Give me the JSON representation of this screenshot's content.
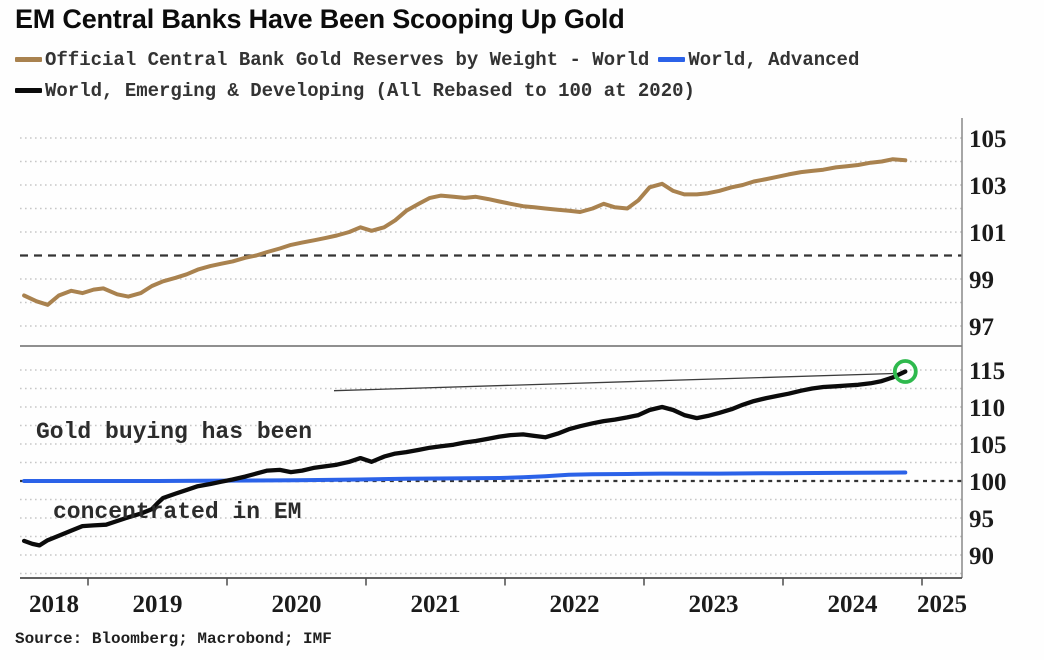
{
  "title": "EM Central Banks Have Been Scooping Up Gold",
  "source": "Source: Bloomberg; Macrobond; IMF",
  "annotation": {
    "line1": "Gold buying has been",
    "line2": "concentrated in EM"
  },
  "colors": {
    "world_total": "#a9824f",
    "world_advanced": "#2b62e8",
    "world_emerging": "#0b0b0b",
    "highlight_circle": "#2eb94d",
    "reference_dash": "#343434",
    "gridline": "#c7c7c7",
    "axis": "#8f8f8f",
    "tick_text": "#1b1b1b"
  },
  "legend": {
    "items": [
      {
        "label": "Official Central Bank Gold Reserves by Weight - World",
        "color": "#a9824f"
      },
      {
        "label": "World, Advanced",
        "color": "#2b62e8"
      },
      {
        "label": "World, Emerging & Developing (All Rebased to 100 at 2020)",
        "color": "#0b0b0b"
      }
    ]
  },
  "x_axis": {
    "range": [
      2018.51,
      2025.29
    ],
    "tick_years": [
      2019,
      2020,
      2021,
      2022,
      2023,
      2024,
      2025
    ],
    "labels": [
      "2018",
      "2019",
      "2020",
      "2021",
      "2022",
      "2023",
      "2024",
      "2025"
    ]
  },
  "chart_data": [
    {
      "type": "line",
      "panel": "top",
      "title": "Official Central Bank Gold Reserves by Weight - World (Rebased to 100 at 2020)",
      "ylim": [
        96.2,
        105.8
      ],
      "ylabel_ticks": [
        105,
        103,
        101,
        99,
        97
      ],
      "gridlines": [
        97,
        98,
        99,
        101,
        102,
        103,
        104,
        105
      ],
      "reference_line": 100,
      "grid": true,
      "legend_position": "top",
      "series": [
        {
          "name": "Official Central Bank Gold Reserves by Weight - World",
          "color": "#a9824f",
          "width": 4,
          "points": [
            [
              2018.54,
              98.3
            ],
            [
              2018.63,
              98.05
            ],
            [
              2018.71,
              97.9
            ],
            [
              2018.79,
              98.3
            ],
            [
              2018.88,
              98.5
            ],
            [
              2018.96,
              98.4
            ],
            [
              2019.04,
              98.55
            ],
            [
              2019.11,
              98.6
            ],
            [
              2019.21,
              98.35
            ],
            [
              2019.29,
              98.25
            ],
            [
              2019.38,
              98.4
            ],
            [
              2019.46,
              98.7
            ],
            [
              2019.54,
              98.9
            ],
            [
              2019.63,
              99.05
            ],
            [
              2019.71,
              99.2
            ],
            [
              2019.79,
              99.4
            ],
            [
              2019.88,
              99.55
            ],
            [
              2019.96,
              99.65
            ],
            [
              2020.04,
              99.75
            ],
            [
              2020.13,
              99.9
            ],
            [
              2020.21,
              100.0
            ],
            [
              2020.29,
              100.15
            ],
            [
              2020.38,
              100.3
            ],
            [
              2020.46,
              100.45
            ],
            [
              2020.54,
              100.55
            ],
            [
              2020.63,
              100.65
            ],
            [
              2020.71,
              100.75
            ],
            [
              2020.79,
              100.85
            ],
            [
              2020.88,
              101.0
            ],
            [
              2020.96,
              101.2
            ],
            [
              2021.04,
              101.05
            ],
            [
              2021.13,
              101.2
            ],
            [
              2021.21,
              101.5
            ],
            [
              2021.29,
              101.9
            ],
            [
              2021.38,
              102.2
            ],
            [
              2021.46,
              102.45
            ],
            [
              2021.54,
              102.55
            ],
            [
              2021.63,
              102.5
            ],
            [
              2021.71,
              102.45
            ],
            [
              2021.79,
              102.5
            ],
            [
              2021.88,
              102.4
            ],
            [
              2021.96,
              102.3
            ],
            [
              2022.04,
              102.2
            ],
            [
              2022.13,
              102.1
            ],
            [
              2022.21,
              102.05
            ],
            [
              2022.29,
              102.0
            ],
            [
              2022.38,
              101.95
            ],
            [
              2022.46,
              101.9
            ],
            [
              2022.54,
              101.85
            ],
            [
              2022.63,
              102.0
            ],
            [
              2022.71,
              102.2
            ],
            [
              2022.79,
              102.05
            ],
            [
              2022.88,
              102.0
            ],
            [
              2022.96,
              102.35
            ],
            [
              2023.04,
              102.9
            ],
            [
              2023.13,
              103.05
            ],
            [
              2023.21,
              102.75
            ],
            [
              2023.29,
              102.6
            ],
            [
              2023.38,
              102.6
            ],
            [
              2023.46,
              102.65
            ],
            [
              2023.54,
              102.75
            ],
            [
              2023.63,
              102.9
            ],
            [
              2023.71,
              103.0
            ],
            [
              2023.79,
              103.15
            ],
            [
              2023.88,
              103.25
            ],
            [
              2023.96,
              103.35
            ],
            [
              2024.04,
              103.45
            ],
            [
              2024.13,
              103.55
            ],
            [
              2024.21,
              103.6
            ],
            [
              2024.29,
              103.65
            ],
            [
              2024.38,
              103.75
            ],
            [
              2024.46,
              103.8
            ],
            [
              2024.54,
              103.85
            ],
            [
              2024.63,
              103.95
            ],
            [
              2024.71,
              104.0
            ],
            [
              2024.79,
              104.1
            ],
            [
              2024.88,
              104.05
            ]
          ]
        }
      ]
    },
    {
      "type": "line",
      "panel": "bottom",
      "title": "World Advanced vs World Emerging & Developing (Rebased to 100 at 2020)",
      "ylim": [
        86.9,
        118.1
      ],
      "ylabel_ticks": [
        115,
        110,
        105,
        100,
        95,
        90
      ],
      "gridlines": [
        87.5,
        90,
        92.5,
        95,
        97.5,
        102.5,
        105,
        107.5,
        110,
        112.5,
        115
      ],
      "reference_line": 100,
      "grid": true,
      "annotation_pointer": {
        "from_x": 2020.77,
        "from_y": 112.2
      },
      "series": [
        {
          "name": "World, Advanced",
          "color": "#2b62e8",
          "width": 4,
          "points": [
            [
              2018.54,
              100.0
            ],
            [
              2019.0,
              100.0
            ],
            [
              2019.5,
              100.0
            ],
            [
              2020.0,
              100.05
            ],
            [
              2020.5,
              100.1
            ],
            [
              2020.96,
              100.2
            ],
            [
              2021.29,
              100.3
            ],
            [
              2021.63,
              100.35
            ],
            [
              2021.96,
              100.4
            ],
            [
              2022.13,
              100.5
            ],
            [
              2022.29,
              100.65
            ],
            [
              2022.46,
              100.85
            ],
            [
              2022.63,
              100.9
            ],
            [
              2022.88,
              100.95
            ],
            [
              2023.13,
              101.0
            ],
            [
              2023.54,
              101.0
            ],
            [
              2023.96,
              101.05
            ],
            [
              2024.38,
              101.1
            ],
            [
              2024.88,
              101.15
            ]
          ]
        },
        {
          "name": "World, Emerging & Developing",
          "color": "#0b0b0b",
          "width": 4.3,
          "end_marker": "green-circle",
          "points": [
            [
              2018.54,
              91.9
            ],
            [
              2018.6,
              91.5
            ],
            [
              2018.65,
              91.3
            ],
            [
              2018.71,
              92.0
            ],
            [
              2018.79,
              92.6
            ],
            [
              2018.88,
              93.3
            ],
            [
              2018.96,
              93.9
            ],
            [
              2019.04,
              94.0
            ],
            [
              2019.13,
              94.1
            ],
            [
              2019.21,
              94.6
            ],
            [
              2019.29,
              95.1
            ],
            [
              2019.38,
              95.6
            ],
            [
              2019.46,
              96.2
            ],
            [
              2019.5,
              97.0
            ],
            [
              2019.54,
              97.7
            ],
            [
              2019.63,
              98.3
            ],
            [
              2019.71,
              98.8
            ],
            [
              2019.79,
              99.3
            ],
            [
              2019.88,
              99.6
            ],
            [
              2019.96,
              99.9
            ],
            [
              2020.04,
              100.2
            ],
            [
              2020.13,
              100.6
            ],
            [
              2020.21,
              101.0
            ],
            [
              2020.29,
              101.4
            ],
            [
              2020.38,
              101.5
            ],
            [
              2020.46,
              101.2
            ],
            [
              2020.54,
              101.4
            ],
            [
              2020.63,
              101.8
            ],
            [
              2020.71,
              102.0
            ],
            [
              2020.79,
              102.2
            ],
            [
              2020.88,
              102.6
            ],
            [
              2020.96,
              103.1
            ],
            [
              2021.04,
              102.6
            ],
            [
              2021.13,
              103.3
            ],
            [
              2021.21,
              103.7
            ],
            [
              2021.29,
              103.9
            ],
            [
              2021.38,
              104.2
            ],
            [
              2021.46,
              104.5
            ],
            [
              2021.54,
              104.7
            ],
            [
              2021.63,
              104.9
            ],
            [
              2021.71,
              105.2
            ],
            [
              2021.79,
              105.4
            ],
            [
              2021.88,
              105.7
            ],
            [
              2021.96,
              106.0
            ],
            [
              2022.04,
              106.2
            ],
            [
              2022.13,
              106.3
            ],
            [
              2022.21,
              106.1
            ],
            [
              2022.29,
              105.9
            ],
            [
              2022.38,
              106.4
            ],
            [
              2022.46,
              107.0
            ],
            [
              2022.54,
              107.4
            ],
            [
              2022.63,
              107.8
            ],
            [
              2022.71,
              108.1
            ],
            [
              2022.79,
              108.3
            ],
            [
              2022.88,
              108.6
            ],
            [
              2022.96,
              108.9
            ],
            [
              2023.04,
              109.6
            ],
            [
              2023.13,
              110.0
            ],
            [
              2023.21,
              109.6
            ],
            [
              2023.29,
              108.9
            ],
            [
              2023.38,
              108.5
            ],
            [
              2023.46,
              108.8
            ],
            [
              2023.54,
              109.2
            ],
            [
              2023.63,
              109.7
            ],
            [
              2023.71,
              110.3
            ],
            [
              2023.79,
              110.8
            ],
            [
              2023.88,
              111.2
            ],
            [
              2023.96,
              111.5
            ],
            [
              2024.04,
              111.8
            ],
            [
              2024.13,
              112.2
            ],
            [
              2024.21,
              112.5
            ],
            [
              2024.29,
              112.7
            ],
            [
              2024.38,
              112.8
            ],
            [
              2024.46,
              112.9
            ],
            [
              2024.54,
              113.0
            ],
            [
              2024.63,
              113.2
            ],
            [
              2024.71,
              113.5
            ],
            [
              2024.79,
              114.0
            ],
            [
              2024.88,
              114.8
            ]
          ]
        }
      ]
    }
  ]
}
